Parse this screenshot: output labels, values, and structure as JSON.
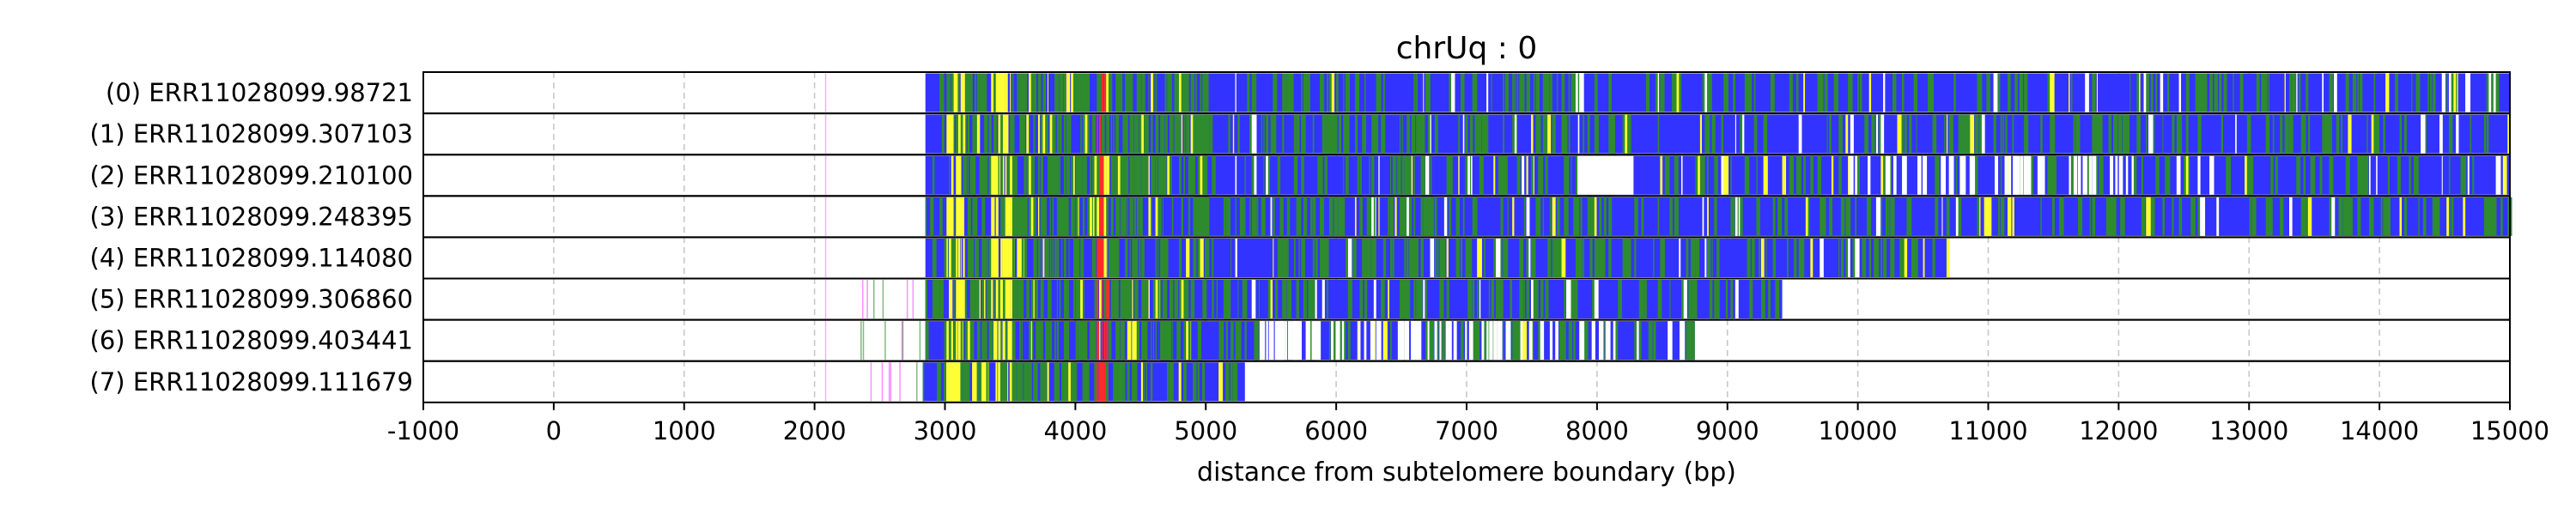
{
  "chart_data": {
    "type": "heatmap",
    "title": "chrUq : 0",
    "xlabel": "distance from subtelomere boundary (bp)",
    "ylabel": "",
    "xlim": [
      -1000,
      15000
    ],
    "xticks": [
      -1000,
      0,
      1000,
      2000,
      3000,
      4000,
      5000,
      6000,
      7000,
      8000,
      9000,
      10000,
      11000,
      12000,
      13000,
      14000,
      15000
    ],
    "grid": "vertical dashed",
    "colors": {
      "blue": "#3333ff",
      "green": "#2e8b2e",
      "yellow": "#ffff33",
      "red": "#ff2a2a",
      "magenta": "#ff44ff",
      "white": "#ffffff"
    },
    "reads": [
      {
        "label": "(0) ERR11028099.98721",
        "start": 2850,
        "end": 15000
      },
      {
        "label": "(1) ERR11028099.307103",
        "start": 2850,
        "end": 15000
      },
      {
        "label": "(2) ERR11028099.210100",
        "start": 2850,
        "end": 15000
      },
      {
        "label": "(3) ERR11028099.248395",
        "start": 2850,
        "end": 15000
      },
      {
        "label": "(4) ERR11028099.114080",
        "start": 2850,
        "end": 10700
      },
      {
        "label": "(5) ERR11028099.306860",
        "start": 2850,
        "end": 9420
      },
      {
        "label": "(6) ERR11028099.403441",
        "start": 2850,
        "end": 8750
      },
      {
        "label": "(7) ERR11028099.111679",
        "start": 2830,
        "end": 5300
      }
    ],
    "band_profile": [
      {
        "x0": 2850,
        "x1": 3000,
        "color": "blue"
      },
      {
        "x0": 3000,
        "x1": 3150,
        "color": "yellow"
      },
      {
        "x0": 3150,
        "x1": 3350,
        "color": "green"
      },
      {
        "x0": 3350,
        "x1": 3500,
        "color": "yellow"
      },
      {
        "x0": 3500,
        "x1": 4150,
        "color": "green"
      },
      {
        "x0": 4150,
        "x1": 4250,
        "color": "red"
      },
      {
        "x0": 4250,
        "x1": 5000,
        "color": "green"
      }
    ]
  }
}
